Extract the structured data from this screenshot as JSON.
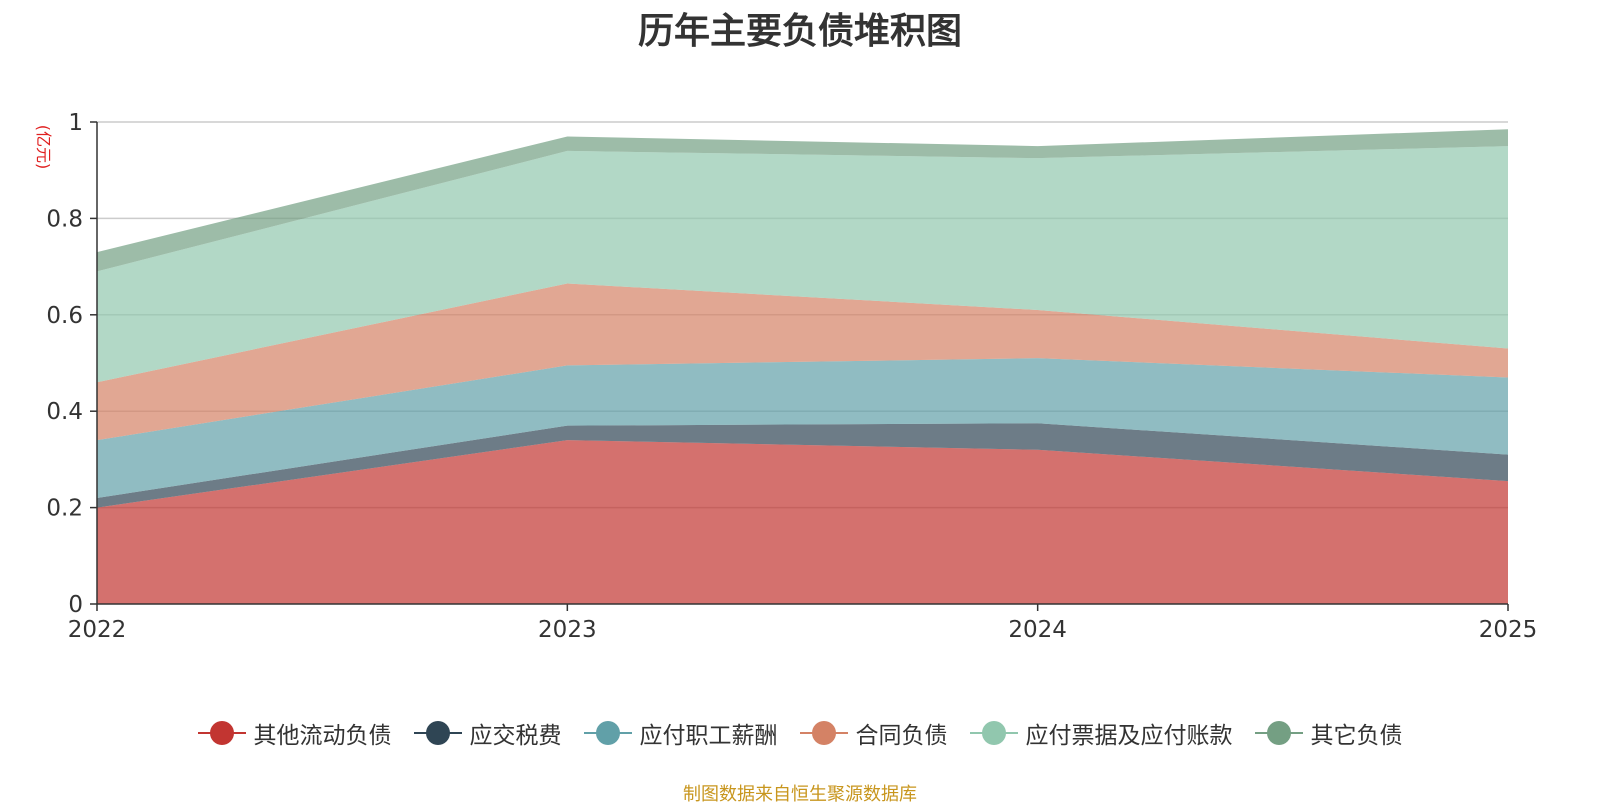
{
  "chart_data": {
    "type": "area",
    "stacked": true,
    "title": "历年主要负债堆积图",
    "ylabel": "(亿元)",
    "x": [
      "2022",
      "2023",
      "2024",
      "2025"
    ],
    "ylim": [
      0,
      1
    ],
    "yticks": [
      "0",
      "0.2",
      "0.4",
      "0.6",
      "0.8",
      "1"
    ],
    "grid": true,
    "legend_position": "bottom",
    "series": [
      {
        "name": "其他流动负债",
        "color": "#c23531",
        "values": [
          0.2,
          0.34,
          0.32,
          0.255
        ]
      },
      {
        "name": "应交税费",
        "color": "#2f4554",
        "values": [
          0.02,
          0.03,
          0.055,
          0.055
        ]
      },
      {
        "name": "应付职工薪酬",
        "color": "#61a0a8",
        "values": [
          0.12,
          0.125,
          0.135,
          0.16
        ]
      },
      {
        "name": "合同负债",
        "color": "#d48265",
        "values": [
          0.12,
          0.17,
          0.1,
          0.06
        ]
      },
      {
        "name": "应付票据及应付账款",
        "color": "#91c7ae",
        "values": [
          0.23,
          0.275,
          0.315,
          0.42
        ]
      },
      {
        "name": "其它负债",
        "color": "#749f83",
        "values": [
          0.04,
          0.03,
          0.025,
          0.035
        ]
      }
    ]
  },
  "source_note": "制图数据来自恒生聚源数据库"
}
